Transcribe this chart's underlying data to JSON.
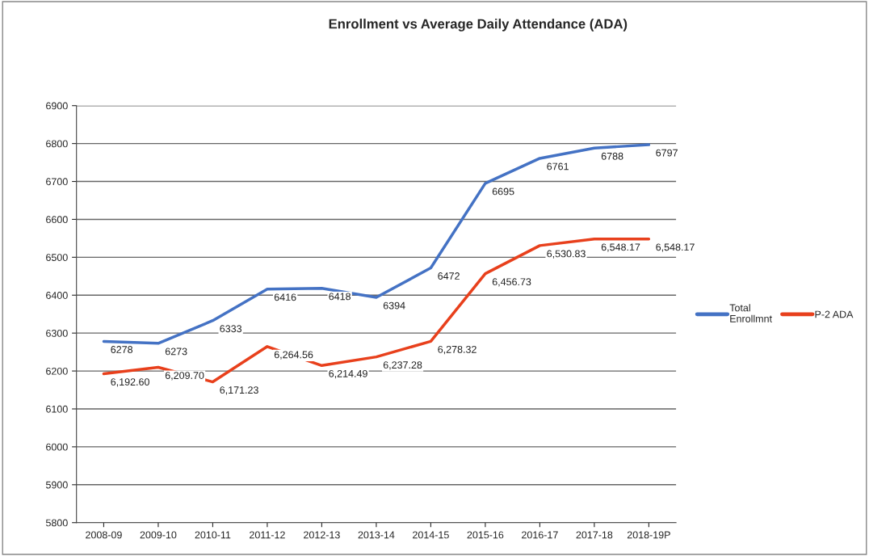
{
  "chart_data": {
    "type": "line",
    "title": "Enrollment vs Average Daily Attendance (ADA)",
    "categories": [
      "2008-09",
      "2009-10",
      "2010-11",
      "2011-12",
      "2012-13",
      "2013-14",
      "2014-15",
      "2015-16",
      "2016-17",
      "2017-18",
      "2018-19P"
    ],
    "series": [
      {
        "name": "Total\nEnrollmnt",
        "color": "#4472c4",
        "values": [
          6278,
          6273,
          6333,
          6416,
          6418,
          6394,
          6472,
          6695,
          6761,
          6788,
          6797
        ],
        "value_labels": [
          "6278",
          "6273",
          "6333",
          "6416",
          "6418",
          "6394",
          "6472",
          "6695",
          "6761",
          "6788",
          "6797"
        ]
      },
      {
        "name": "P-2 ADA",
        "color": "#e8401c",
        "values": [
          6192.6,
          6209.7,
          6171.23,
          6264.56,
          6214.49,
          6237.28,
          6278.32,
          6456.73,
          6530.83,
          6548.17,
          6548.17
        ],
        "value_labels": [
          "6,192.60",
          "6,209.70",
          "6,171.23",
          "6,264.56",
          "6,214.49",
          "6,237.28",
          "6,278.32",
          "6,456.73",
          "6,530.83",
          "6,548.17",
          "6,548.17"
        ]
      }
    ],
    "ylim": [
      5800,
      6900
    ],
    "yticks": [
      5800,
      5900,
      6000,
      6100,
      6200,
      6300,
      6400,
      6500,
      6600,
      6700,
      6800,
      6900
    ],
    "grid": "y",
    "legend": "right",
    "marker": "none",
    "line_style": "solid"
  }
}
